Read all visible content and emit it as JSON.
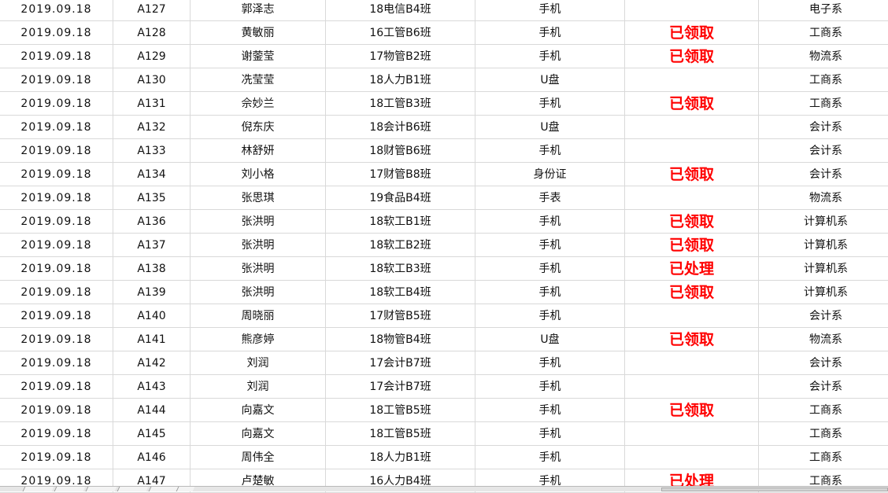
{
  "rows": [
    {
      "date": "2019.09.18",
      "id": "A127",
      "name": "郭泽志",
      "class": "18电信B4班",
      "item": "手机",
      "status": "",
      "dept": "电子系"
    },
    {
      "date": "2019.09.18",
      "id": "A128",
      "name": "黄敏丽",
      "class": "16工管B6班",
      "item": "手机",
      "status": "已领取",
      "dept": "工商系"
    },
    {
      "date": "2019.09.18",
      "id": "A129",
      "name": "谢蓥莹",
      "class": "17物管B2班",
      "item": "手机",
      "status": "已领取",
      "dept": "物流系"
    },
    {
      "date": "2019.09.18",
      "id": "A130",
      "name": "冼莹莹",
      "class": "18人力B1班",
      "item": "U盘",
      "status": "",
      "dept": "工商系"
    },
    {
      "date": "2019.09.18",
      "id": "A131",
      "name": "佘妙兰",
      "class": "18工管B3班",
      "item": "手机",
      "status": "已领取",
      "dept": "工商系"
    },
    {
      "date": "2019.09.18",
      "id": "A132",
      "name": "倪东庆",
      "class": "18会计B6班",
      "item": "U盘",
      "status": "",
      "dept": "会计系"
    },
    {
      "date": "2019.09.18",
      "id": "A133",
      "name": "林舒妍",
      "class": "18财管B6班",
      "item": "手机",
      "status": "",
      "dept": "会计系"
    },
    {
      "date": "2019.09.18",
      "id": "A134",
      "name": "刘小格",
      "class": "17财管B8班",
      "item": "身份证",
      "status": "已领取",
      "dept": "会计系"
    },
    {
      "date": "2019.09.18",
      "id": "A135",
      "name": "张思琪",
      "class": "19食品B4班",
      "item": "手表",
      "status": "",
      "dept": "物流系"
    },
    {
      "date": "2019.09.18",
      "id": "A136",
      "name": "张洪明",
      "class": "18软工B1班",
      "item": "手机",
      "status": "已领取",
      "dept": "计算机系"
    },
    {
      "date": "2019.09.18",
      "id": "A137",
      "name": "张洪明",
      "class": "18软工B2班",
      "item": "手机",
      "status": "已领取",
      "dept": "计算机系"
    },
    {
      "date": "2019.09.18",
      "id": "A138",
      "name": "张洪明",
      "class": "18软工B3班",
      "item": "手机",
      "status": "已处理",
      "dept": "计算机系"
    },
    {
      "date": "2019.09.18",
      "id": "A139",
      "name": "张洪明",
      "class": "18软工B4班",
      "item": "手机",
      "status": "已领取",
      "dept": "计算机系"
    },
    {
      "date": "2019.09.18",
      "id": "A140",
      "name": "周晓丽",
      "class": "17财管B5班",
      "item": "手机",
      "status": "",
      "dept": "会计系"
    },
    {
      "date": "2019.09.18",
      "id": "A141",
      "name": "熊彦婷",
      "class": "18物管B4班",
      "item": "U盘",
      "status": "已领取",
      "dept": "物流系"
    },
    {
      "date": "2019.09.18",
      "id": "A142",
      "name": "刘润",
      "class": "17会计B7班",
      "item": "手机",
      "status": "",
      "dept": "会计系"
    },
    {
      "date": "2019.09.18",
      "id": "A143",
      "name": "刘润",
      "class": "17会计B7班",
      "item": "手机",
      "status": "",
      "dept": "会计系"
    },
    {
      "date": "2019.09.18",
      "id": "A144",
      "name": "向嘉文",
      "class": "18工管B5班",
      "item": "手机",
      "status": "已领取",
      "dept": "工商系"
    },
    {
      "date": "2019.09.18",
      "id": "A145",
      "name": "向嘉文",
      "class": "18工管B5班",
      "item": "手机",
      "status": "",
      "dept": "工商系"
    },
    {
      "date": "2019.09.18",
      "id": "A146",
      "name": "周伟全",
      "class": "18人力B1班",
      "item": "手机",
      "status": "",
      "dept": "工商系"
    },
    {
      "date": "2019.09.18",
      "id": "A147",
      "name": "卢楚敏",
      "class": "16人力B4班",
      "item": "手机",
      "status": "已处理",
      "dept": "工商系"
    }
  ],
  "colors": {
    "status_text": "#ff0000",
    "gridline": "#d9d9d9"
  }
}
